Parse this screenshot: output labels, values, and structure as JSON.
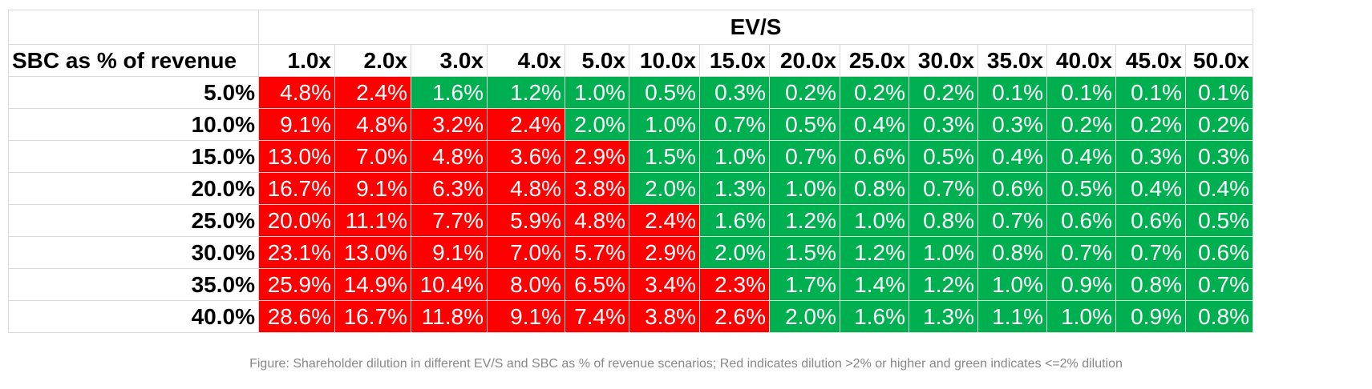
{
  "colors": {
    "red": "#ff0000",
    "green": "#00b050"
  },
  "chart_data": {
    "type": "table",
    "title": "EV/S",
    "row_header": "SBC as % of revenue",
    "columns": [
      "1.0x",
      "2.0x",
      "3.0x",
      "4.0x",
      "5.0x",
      "10.0x",
      "15.0x",
      "20.0x",
      "25.0x",
      "30.0x",
      "35.0x",
      "40.0x",
      "45.0x",
      "50.0x"
    ],
    "rows": [
      {
        "label": "5.0%",
        "values": [
          "4.8%",
          "2.4%",
          "1.6%",
          "1.2%",
          "1.0%",
          "0.5%",
          "0.3%",
          "0.2%",
          "0.2%",
          "0.2%",
          "0.1%",
          "0.1%",
          "0.1%",
          "0.1%"
        ],
        "colors": [
          "red",
          "red",
          "green",
          "green",
          "green",
          "green",
          "green",
          "green",
          "green",
          "green",
          "green",
          "green",
          "green",
          "green"
        ]
      },
      {
        "label": "10.0%",
        "values": [
          "9.1%",
          "4.8%",
          "3.2%",
          "2.4%",
          "2.0%",
          "1.0%",
          "0.7%",
          "0.5%",
          "0.4%",
          "0.3%",
          "0.3%",
          "0.2%",
          "0.2%",
          "0.2%"
        ],
        "colors": [
          "red",
          "red",
          "red",
          "red",
          "green",
          "green",
          "green",
          "green",
          "green",
          "green",
          "green",
          "green",
          "green",
          "green"
        ]
      },
      {
        "label": "15.0%",
        "values": [
          "13.0%",
          "7.0%",
          "4.8%",
          "3.6%",
          "2.9%",
          "1.5%",
          "1.0%",
          "0.7%",
          "0.6%",
          "0.5%",
          "0.4%",
          "0.4%",
          "0.3%",
          "0.3%"
        ],
        "colors": [
          "red",
          "red",
          "red",
          "red",
          "red",
          "green",
          "green",
          "green",
          "green",
          "green",
          "green",
          "green",
          "green",
          "green"
        ]
      },
      {
        "label": "20.0%",
        "values": [
          "16.7%",
          "9.1%",
          "6.3%",
          "4.8%",
          "3.8%",
          "2.0%",
          "1.3%",
          "1.0%",
          "0.8%",
          "0.7%",
          "0.6%",
          "0.5%",
          "0.4%",
          "0.4%"
        ],
        "colors": [
          "red",
          "red",
          "red",
          "red",
          "red",
          "green",
          "green",
          "green",
          "green",
          "green",
          "green",
          "green",
          "green",
          "green"
        ]
      },
      {
        "label": "25.0%",
        "values": [
          "20.0%",
          "11.1%",
          "7.7%",
          "5.9%",
          "4.8%",
          "2.4%",
          "1.6%",
          "1.2%",
          "1.0%",
          "0.8%",
          "0.7%",
          "0.6%",
          "0.6%",
          "0.5%"
        ],
        "colors": [
          "red",
          "red",
          "red",
          "red",
          "red",
          "red",
          "green",
          "green",
          "green",
          "green",
          "green",
          "green",
          "green",
          "green"
        ]
      },
      {
        "label": "30.0%",
        "values": [
          "23.1%",
          "13.0%",
          "9.1%",
          "7.0%",
          "5.7%",
          "2.9%",
          "2.0%",
          "1.5%",
          "1.2%",
          "1.0%",
          "0.8%",
          "0.7%",
          "0.7%",
          "0.6%"
        ],
        "colors": [
          "red",
          "red",
          "red",
          "red",
          "red",
          "red",
          "green",
          "green",
          "green",
          "green",
          "green",
          "green",
          "green",
          "green"
        ]
      },
      {
        "label": "35.0%",
        "values": [
          "25.9%",
          "14.9%",
          "10.4%",
          "8.0%",
          "6.5%",
          "3.4%",
          "2.3%",
          "1.7%",
          "1.4%",
          "1.2%",
          "1.0%",
          "0.9%",
          "0.8%",
          "0.7%"
        ],
        "colors": [
          "red",
          "red",
          "red",
          "red",
          "red",
          "red",
          "red",
          "green",
          "green",
          "green",
          "green",
          "green",
          "green",
          "green"
        ]
      },
      {
        "label": "40.0%",
        "values": [
          "28.6%",
          "16.7%",
          "11.8%",
          "9.1%",
          "7.4%",
          "3.8%",
          "2.6%",
          "2.0%",
          "1.6%",
          "1.3%",
          "1.1%",
          "1.0%",
          "0.9%",
          "0.8%"
        ],
        "colors": [
          "red",
          "red",
          "red",
          "red",
          "red",
          "red",
          "red",
          "green",
          "green",
          "green",
          "green",
          "green",
          "green",
          "green"
        ]
      }
    ]
  },
  "caption": "Figure: Shareholder dilution in different EV/S and SBC as % of revenue scenarios; Red indicates dilution >2% or higher and green indicates <=2% dilution"
}
